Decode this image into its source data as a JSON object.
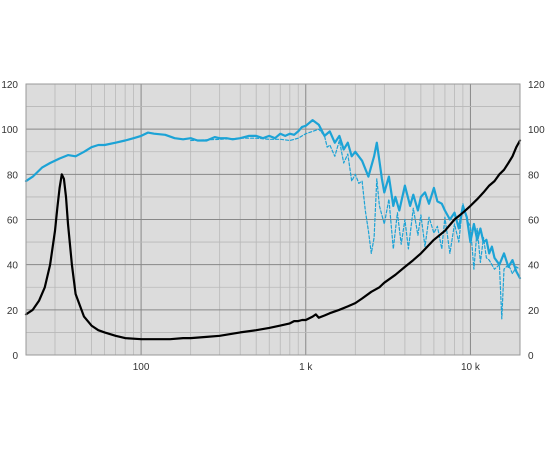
{
  "chart_data": {
    "type": "line",
    "title": "",
    "xlabel": "",
    "ylabel": "",
    "x_scale": "log",
    "xlim": [
      20,
      20000
    ],
    "ylim": [
      0,
      120
    ],
    "grid": true,
    "legend": "none",
    "x_ticks": [
      {
        "value": 100,
        "label": "100"
      },
      {
        "value": 1000,
        "label": "1 k"
      },
      {
        "value": 10000,
        "label": "10 k"
      }
    ],
    "y_ticks": [
      {
        "value": 0,
        "label": "0"
      },
      {
        "value": 20,
        "label": "20"
      },
      {
        "value": 40,
        "label": "40"
      },
      {
        "value": 60,
        "label": "60"
      },
      {
        "value": 80,
        "label": "80"
      },
      {
        "value": 100,
        "label": "100"
      },
      {
        "value": 120,
        "label": "120"
      }
    ],
    "series": [
      {
        "color": "#1ca3d6",
        "style": "solid",
        "x": [
          20,
          22,
          25,
          28,
          32,
          36,
          40,
          45,
          50,
          55,
          60,
          70,
          80,
          90,
          100,
          110,
          120,
          140,
          160,
          180,
          200,
          220,
          250,
          280,
          300,
          330,
          360,
          400,
          450,
          500,
          550,
          600,
          650,
          700,
          750,
          800,
          850,
          900,
          950,
          1000,
          1100,
          1200,
          1300,
          1400,
          1500,
          1600,
          1700,
          1800,
          1900,
          2000,
          2200,
          2400,
          2600,
          2700,
          2800,
          2900,
          3000,
          3200,
          3400,
          3500,
          3700,
          4000,
          4300,
          4500,
          4800,
          5000,
          5300,
          5600,
          6000,
          6300,
          6700,
          7000,
          7500,
          8000,
          8500,
          9000,
          9500,
          10000,
          10500,
          11000,
          11500,
          12000,
          12500,
          13000,
          13500,
          14000,
          15000,
          16000,
          17000,
          18000,
          19000,
          20000
        ],
        "y": [
          77,
          79,
          83,
          85,
          87,
          88.5,
          88,
          90,
          92,
          93,
          93,
          94,
          95,
          96,
          97,
          98.5,
          98,
          97.5,
          96,
          95.5,
          96,
          95,
          95,
          96.5,
          96,
          96,
          95.5,
          96,
          97,
          97,
          96,
          97,
          96,
          98,
          97,
          98,
          97.5,
          99,
          101,
          101.5,
          104,
          102,
          97,
          99,
          94,
          97,
          91,
          94,
          88,
          90,
          86,
          79,
          88,
          94,
          86,
          78,
          72,
          79,
          66,
          70,
          64,
          75,
          66,
          71,
          64,
          70,
          72,
          67,
          74,
          68,
          67,
          64,
          60,
          63,
          56,
          66,
          61,
          50,
          58,
          51,
          56,
          50,
          51,
          45,
          48,
          43,
          40,
          45,
          39,
          42,
          37,
          34
        ]
      },
      {
        "color": "#1ca3d6",
        "style": "dashed",
        "x": [
          200,
          300,
          400,
          500,
          600,
          700,
          800,
          900,
          1000,
          1100,
          1200,
          1300,
          1350,
          1400,
          1500,
          1600,
          1700,
          1800,
          1900,
          2000,
          2100,
          2200,
          2300,
          2400,
          2500,
          2600,
          2700,
          2800,
          3000,
          3200,
          3400,
          3600,
          3800,
          4000,
          4200,
          4500,
          4800,
          5000,
          5300,
          5600,
          6000,
          6300,
          6700,
          7000,
          7500,
          8000,
          8500,
          9000,
          9500,
          10000,
          10500,
          11000,
          11500,
          12000,
          12500,
          13000,
          14000,
          15000,
          15500,
          16000,
          17000,
          18000,
          19000,
          20000
        ],
        "y": [
          95,
          95.5,
          96,
          96,
          95.5,
          95.5,
          95,
          96,
          98,
          99,
          100,
          97,
          92,
          93,
          88,
          95,
          85,
          89,
          77,
          80,
          76,
          77,
          64,
          55,
          45,
          52,
          78,
          66,
          58,
          69,
          47,
          63,
          49,
          60,
          47,
          65,
          53,
          62,
          48,
          61,
          54,
          57,
          47,
          61,
          45,
          58,
          50,
          67,
          60,
          57,
          38,
          56,
          41,
          52,
          43,
          42,
          38,
          40,
          16,
          38,
          40,
          36,
          39,
          38
        ]
      },
      {
        "color": "#000000",
        "style": "solid",
        "x": [
          20,
          22,
          24,
          26,
          28,
          30,
          31,
          32,
          33,
          34,
          35,
          36,
          38,
          40,
          45,
          50,
          55,
          60,
          70,
          80,
          100,
          120,
          150,
          180,
          200,
          250,
          300,
          400,
          500,
          600,
          700,
          800,
          850,
          900,
          950,
          1000,
          1100,
          1150,
          1200,
          1300,
          1400,
          1600,
          1800,
          2000,
          2200,
          2500,
          2800,
          3000,
          3500,
          4000,
          4500,
          5000,
          6000,
          7000,
          8000,
          9000,
          10000,
          11000,
          12000,
          13000,
          14000,
          15000,
          16000,
          17000,
          18000,
          19000,
          20000
        ],
        "y": [
          18,
          20,
          24,
          30,
          40,
          55,
          65,
          74,
          80,
          78,
          70,
          58,
          40,
          27,
          17,
          13,
          11,
          10,
          8.5,
          7.5,
          7,
          7,
          7,
          7.5,
          7.5,
          8,
          8.5,
          10,
          11,
          12,
          13,
          14,
          15,
          15,
          15.5,
          15.5,
          17,
          18,
          16.5,
          17.5,
          18.5,
          20,
          21.5,
          23,
          25,
          28,
          30,
          32,
          35.5,
          39,
          42,
          45,
          51,
          55,
          60,
          63,
          66,
          69,
          72,
          75,
          77,
          80,
          82,
          85,
          88,
          92,
          95
        ]
      }
    ]
  }
}
